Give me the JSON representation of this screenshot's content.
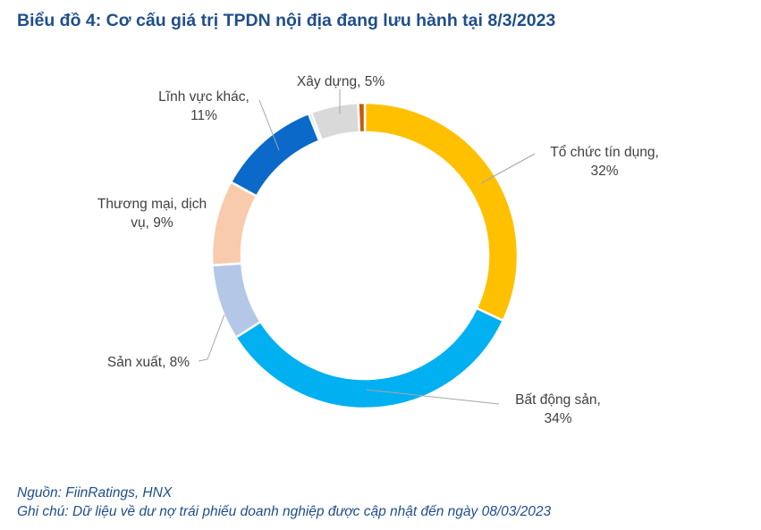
{
  "title": "Biểu đồ 4: Cơ cấu giá trị TPDN nội địa đang lưu hành tại 8/3/2023",
  "source": "Nguồn: FiinRatings, HNX",
  "note": "Ghi chú: Dữ liệu về dư nợ trái phiếu doanh nghiệp được cập nhật đến ngày 08/03/2023",
  "chart_data": {
    "type": "pie",
    "title": "Biểu đồ 4: Cơ cấu giá trị TPDN nội địa đang lưu hành tại 8/3/2023",
    "categories": [
      "Tổ chức tín dụng",
      "Bất động sản",
      "Sản xuất",
      "Thương mại, dịch vụ",
      "Lĩnh vực khác",
      "",
      "Xây dựng",
      ""
    ],
    "values": [
      32,
      34,
      8,
      9,
      11,
      0.3,
      5,
      0.7
    ],
    "slices": [
      {
        "name": "Tổ chức tín dụng",
        "value": 32,
        "label_lines": [
          "Tổ chức tín dụng,",
          "32%"
        ],
        "color": "#ffc000"
      },
      {
        "name": "Bất động sản",
        "value": 34,
        "label_lines": [
          "Bất động sản,",
          "34%"
        ],
        "color": "#00b0f0"
      },
      {
        "name": "Sản xuất",
        "value": 8,
        "label_lines": [
          "Sản xuất, 8%"
        ],
        "color": "#b4c7e7"
      },
      {
        "name": "Thương mại, dịch vụ",
        "value": 9,
        "label_lines": [
          "Thương mại, dịch",
          "vụ, 9%"
        ],
        "color": "#f8cbad"
      },
      {
        "name": "Lĩnh vực khác",
        "value": 11,
        "label_lines": [
          "Lĩnh vực khác,",
          "11%"
        ],
        "color": "#0b6ac9"
      },
      {
        "name": "",
        "value": 0.3,
        "label_lines": [],
        "color": "#a9c4e8"
      },
      {
        "name": "Xây dựng",
        "value": 5,
        "label_lines": [
          "Xây dựng, 5%"
        ],
        "color": "#d9d9d9"
      },
      {
        "name": "",
        "value": 0.7,
        "label_lines": [],
        "color": "#c55a11"
      }
    ],
    "donut": true,
    "legend": "none"
  }
}
